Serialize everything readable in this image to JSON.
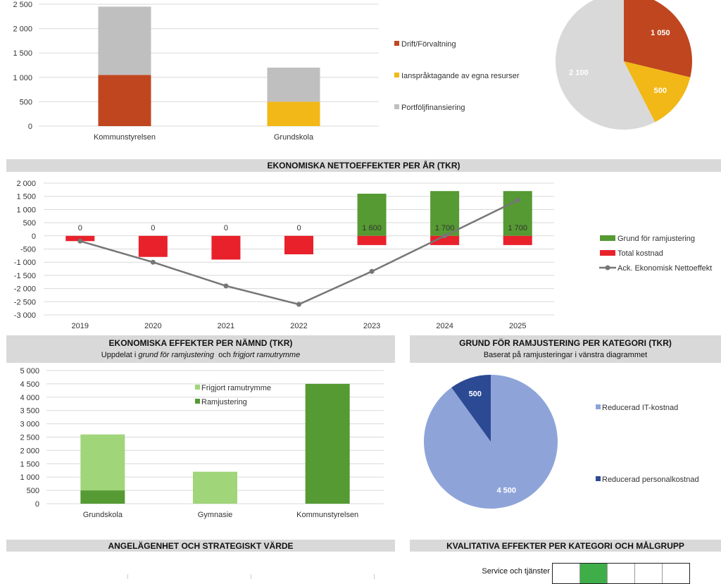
{
  "chart_data": [
    {
      "type": "bar",
      "stacked": true,
      "categories": [
        "Kommunstyrelsen",
        "Grundskola"
      ],
      "series": [
        {
          "name": "Drift/Förvaltning",
          "values": [
            1050,
            0
          ],
          "color": "#c0461f"
        },
        {
          "name": "Ianspråktagande av egna resurser",
          "values": [
            0,
            500
          ],
          "color": "#f2b817"
        },
        {
          "name": "Portföljfinansiering",
          "values": [
            1400,
            700
          ],
          "color": "#bfbfbf"
        }
      ],
      "y_ticks": [
        "2 500",
        "2 000",
        "1 500",
        "1 000",
        "500",
        "0"
      ],
      "ylim": [
        0,
        2500
      ],
      "grid": true,
      "legend": "right"
    },
    {
      "type": "pie",
      "slices": [
        {
          "label": "1 050",
          "value": 1050,
          "color": "#c0461f"
        },
        {
          "label": "500",
          "value": 500,
          "color": "#f2b817"
        },
        {
          "label": "2 100",
          "value": 2100,
          "color": "#d9d9d9"
        }
      ]
    },
    {
      "type": "bar",
      "title": "EKONOMISKA NETTOEFFEKTER PER ÅR (TKR)",
      "categories": [
        "2019",
        "2020",
        "2021",
        "2022",
        "2023",
        "2024",
        "2025"
      ],
      "series": [
        {
          "name": "Grund för ramjustering",
          "values": [
            0,
            0,
            0,
            0,
            1600,
            1700,
            1700
          ],
          "labels": [
            "0",
            "0",
            "0",
            "0",
            "1 600",
            "1 700",
            "1 700"
          ],
          "color": "#559a32"
        },
        {
          "name": "Total kostnad",
          "values": [
            -200,
            -800,
            -900,
            -700,
            -350,
            -350,
            -350
          ],
          "color": "#e8212b"
        },
        {
          "name": "Ack. Ekonomisk Nettoeffekt",
          "type": "line",
          "values": [
            -200,
            -1000,
            -1900,
            -2600,
            -1350,
            0,
            1350
          ],
          "color": "#767676"
        }
      ],
      "y_ticks": [
        "2 000",
        "1 500",
        "1 000",
        "500",
        "0",
        "-500",
        "-1 000",
        "-1 500",
        "-2 000",
        "-2 500",
        "-3 000"
      ],
      "ylim": [
        -3000,
        2000
      ],
      "grid": true,
      "legend": "right"
    },
    {
      "type": "bar",
      "stacked": true,
      "title": "EKONOMISKA EFFEKTER PER NÄMND (TKR)",
      "subtitle": {
        "pre": "Uppdelat i ",
        "em1": "grund för ramjustering",
        "mid": "  och ",
        "em2": "frigjort ramutrymme"
      },
      "categories": [
        "Grundskola",
        "Gymnasie",
        "Kommunstyrelsen"
      ],
      "series": [
        {
          "name": "Frigjort ramutrymme",
          "values": [
            2100,
            1200,
            0
          ],
          "color": "#a0d57a"
        },
        {
          "name": "Ramjustering",
          "values": [
            500,
            0,
            4500
          ],
          "color": "#559a32"
        }
      ],
      "y_ticks": [
        "5 000",
        "4 500",
        "4 000",
        "3 500",
        "3 000",
        "2 500",
        "2 000",
        "1 500",
        "1 000",
        "500",
        "0"
      ],
      "ylim": [
        0,
        5000
      ],
      "grid": true,
      "legend": "top"
    },
    {
      "type": "pie",
      "title": "GRUND FÖR RAMJUSTERING PER KATEGORI (TKR)",
      "subtitle": "Baserat på ramjusteringar i vänstra diagrammet",
      "slices": [
        {
          "name": "Reducerad IT-kostnad",
          "label": "4 500",
          "value": 4500,
          "color": "#8ea4d9"
        },
        {
          "name": "Reducerad personalkostnad",
          "label": "500",
          "value": 500,
          "color": "#2c4a94"
        }
      ],
      "legend": "right"
    }
  ],
  "sections": {
    "angelagenhet_title": "ANGELÄGENHET OCH STRATEGISKT VÄRDE",
    "kvalitativa_title": "KVALITATIVA EFFEKTER PER KATEGORI OCH MÅLGRUPP",
    "kvalitativa_row": "Service och tjänster"
  }
}
